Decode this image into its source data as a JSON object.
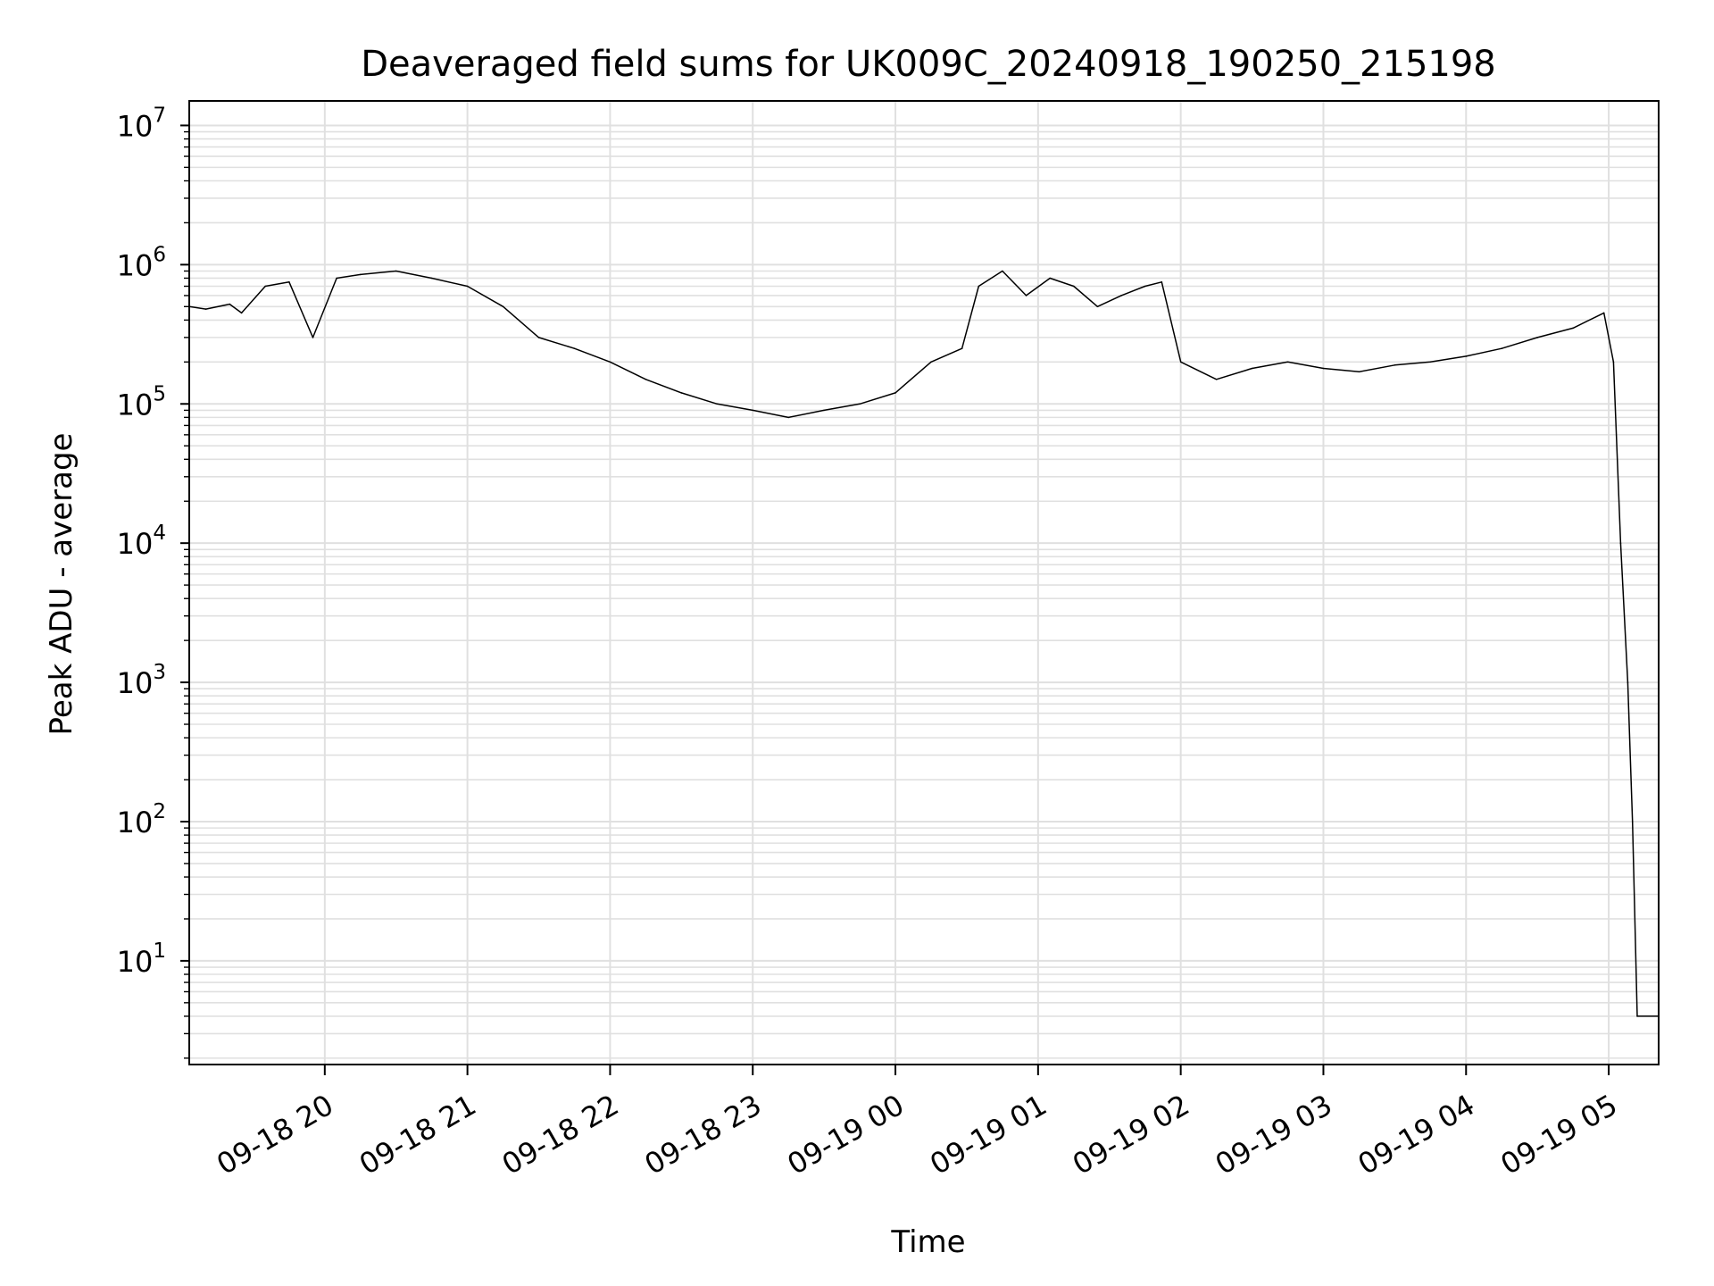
{
  "chart_data": {
    "type": "line",
    "title": "Deaveraged field sums for UK009C_20240918_190250_215198",
    "xlabel": "Time",
    "ylabel": "Peak ADU - average",
    "x_scale": "time",
    "y_scale": "log",
    "xlim": [
      "2024-09-18 19:03",
      "2024-09-19 05:21"
    ],
    "ylim": [
      1.8,
      15000000
    ],
    "grid": true,
    "grid_minor_y": true,
    "line_color": "#000000",
    "grid_color": "#e0e0e0",
    "x_ticks": [
      {
        "t": "2024-09-18 20:00",
        "label": "09-18 20"
      },
      {
        "t": "2024-09-18 21:00",
        "label": "09-18 21"
      },
      {
        "t": "2024-09-18 22:00",
        "label": "09-18 22"
      },
      {
        "t": "2024-09-18 23:00",
        "label": "09-18 23"
      },
      {
        "t": "2024-09-19 00:00",
        "label": "09-19 00"
      },
      {
        "t": "2024-09-19 01:00",
        "label": "09-19 01"
      },
      {
        "t": "2024-09-19 02:00",
        "label": "09-19 02"
      },
      {
        "t": "2024-09-19 03:00",
        "label": "09-19 03"
      },
      {
        "t": "2024-09-19 04:00",
        "label": "09-19 04"
      },
      {
        "t": "2024-09-19 05:00",
        "label": "09-19 05"
      }
    ],
    "y_ticks": [
      {
        "v": 10,
        "base": "10",
        "exp": "1"
      },
      {
        "v": 100,
        "base": "10",
        "exp": "2"
      },
      {
        "v": 1000,
        "base": "10",
        "exp": "3"
      },
      {
        "v": 10000,
        "base": "10",
        "exp": "4"
      },
      {
        "v": 100000,
        "base": "10",
        "exp": "5"
      },
      {
        "v": 1000000,
        "base": "10",
        "exp": "6"
      },
      {
        "v": 10000000,
        "base": "10",
        "exp": "7"
      }
    ],
    "series": [
      {
        "x": [
          "2024-09-18 19:03",
          "2024-09-18 19:10",
          "2024-09-18 19:20",
          "2024-09-18 19:25",
          "2024-09-18 19:35",
          "2024-09-18 19:45",
          "2024-09-18 19:55",
          "2024-09-18 20:05",
          "2024-09-18 20:15",
          "2024-09-18 20:30",
          "2024-09-18 20:45",
          "2024-09-18 21:00",
          "2024-09-18 21:15",
          "2024-09-18 21:30",
          "2024-09-18 21:45",
          "2024-09-18 22:00",
          "2024-09-18 22:15",
          "2024-09-18 22:30",
          "2024-09-18 22:45",
          "2024-09-18 23:00",
          "2024-09-18 23:15",
          "2024-09-18 23:30",
          "2024-09-18 23:45",
          "2024-09-19 00:00",
          "2024-09-19 00:15",
          "2024-09-19 00:28",
          "2024-09-19 00:35",
          "2024-09-19 00:45",
          "2024-09-19 00:55",
          "2024-09-19 01:05",
          "2024-09-19 01:15",
          "2024-09-19 01:25",
          "2024-09-19 01:35",
          "2024-09-19 01:45",
          "2024-09-19 01:52",
          "2024-09-19 02:00",
          "2024-09-19 02:15",
          "2024-09-19 02:30",
          "2024-09-19 02:45",
          "2024-09-19 03:00",
          "2024-09-19 03:15",
          "2024-09-19 03:30",
          "2024-09-19 03:45",
          "2024-09-19 04:00",
          "2024-09-19 04:15",
          "2024-09-19 04:30",
          "2024-09-19 04:45",
          "2024-09-19 04:58",
          "2024-09-19 05:02",
          "2024-09-19 05:05",
          "2024-09-19 05:08",
          "2024-09-19 05:10",
          "2024-09-19 05:12",
          "2024-09-19 05:21"
        ],
        "y": [
          500000,
          480000,
          520000,
          450000,
          700000,
          750000,
          300000,
          800000,
          850000,
          900000,
          800000,
          700000,
          500000,
          300000,
          250000,
          200000,
          150000,
          120000,
          100000,
          90000,
          80000,
          90000,
          100000,
          120000,
          200000,
          250000,
          700000,
          900000,
          600000,
          800000,
          700000,
          500000,
          600000,
          700000,
          750000,
          200000,
          150000,
          180000,
          200000,
          180000,
          170000,
          190000,
          200000,
          220000,
          250000,
          300000,
          350000,
          450000,
          200000,
          10000,
          1000,
          100,
          4,
          4
        ]
      }
    ]
  }
}
